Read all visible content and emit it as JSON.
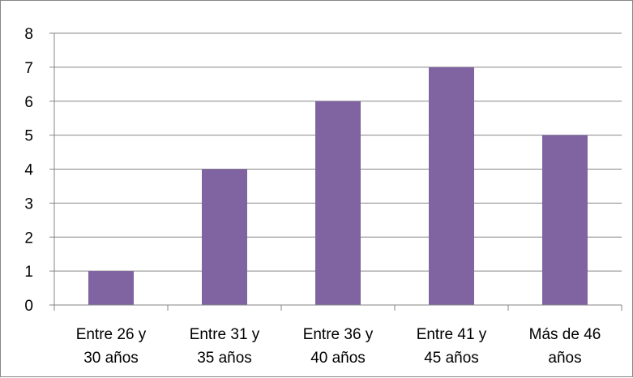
{
  "chart_data": {
    "type": "bar",
    "categories": [
      [
        "Entre 26 y",
        "30 años"
      ],
      [
        "Entre 31 y",
        "35 años"
      ],
      [
        "Entre 36 y",
        "40 años"
      ],
      [
        "Entre 41 y",
        "45 años"
      ],
      [
        "Más de 46",
        "años"
      ]
    ],
    "values": [
      1,
      4,
      6,
      7,
      5
    ],
    "ylim": [
      0,
      8
    ],
    "yticks": [
      "0",
      "1",
      "2",
      "3",
      "4",
      "5",
      "6",
      "7",
      "8"
    ],
    "grid": true,
    "legend": "none",
    "bar_color": "#8064A2",
    "grid_color": "#868686"
  }
}
